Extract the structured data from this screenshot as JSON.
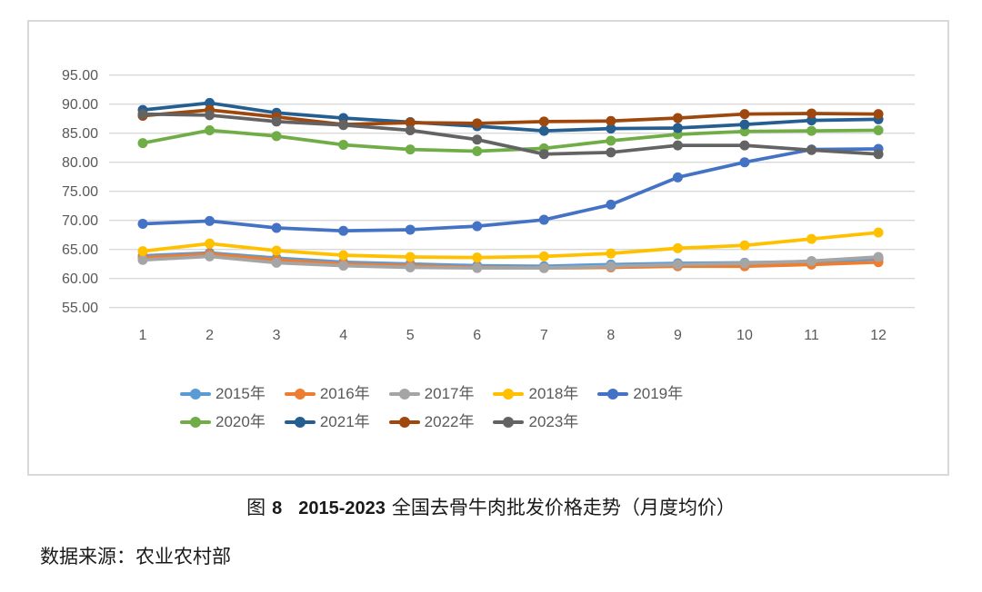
{
  "caption": {
    "fig_label_zh": "图",
    "fig_number": "8",
    "year_range": "2015-2023",
    "title_zh": "全国去骨牛肉批发价格走势（月度均价）"
  },
  "source": {
    "text": "数据来源：农业农村部"
  },
  "chart_data": {
    "type": "line",
    "title": "图8 2015-2023全国去骨牛肉批发价格走势（月度均价）",
    "xlabel": "",
    "ylabel": "",
    "categories": [
      "1",
      "2",
      "3",
      "4",
      "5",
      "6",
      "7",
      "8",
      "9",
      "10",
      "11",
      "12"
    ],
    "ylim": [
      55,
      95
    ],
    "ytick_step": 5,
    "grid": true,
    "legend_position": "bottom",
    "axis_text_color": "#595959",
    "gridline_color": "#d9d9d9",
    "series": [
      {
        "name": "2015年",
        "color": "#5B9BD5",
        "values": [
          63.9,
          64.4,
          63.5,
          62.8,
          62.5,
          62.2,
          62.1,
          62.4,
          62.6,
          62.7,
          62.9,
          63.4
        ]
      },
      {
        "name": "2016年",
        "color": "#ED7D31",
        "values": [
          63.6,
          64.2,
          63.2,
          62.5,
          62.2,
          61.9,
          61.8,
          61.9,
          62.1,
          62.1,
          62.4,
          62.8
        ]
      },
      {
        "name": "2017年",
        "color": "#A5A5A5",
        "values": [
          63.2,
          63.8,
          62.7,
          62.2,
          61.9,
          61.8,
          61.8,
          62.1,
          62.4,
          62.6,
          63.0,
          63.7
        ]
      },
      {
        "name": "2018年",
        "color": "#FFC000",
        "values": [
          64.7,
          66.0,
          64.8,
          64.0,
          63.7,
          63.6,
          63.8,
          64.3,
          65.2,
          65.7,
          66.8,
          67.9
        ]
      },
      {
        "name": "2019年",
        "color": "#4472C4",
        "values": [
          69.4,
          69.9,
          68.7,
          68.2,
          68.4,
          69.0,
          70.1,
          72.7,
          77.4,
          80.0,
          82.2,
          82.3
        ]
      },
      {
        "name": "2020年",
        "color": "#70AD47",
        "values": [
          83.3,
          85.5,
          84.5,
          83.0,
          82.2,
          81.9,
          82.4,
          83.7,
          84.8,
          85.3,
          85.4,
          85.5
        ]
      },
      {
        "name": "2021年",
        "color": "#255E91",
        "values": [
          89.0,
          90.2,
          88.5,
          87.6,
          86.9,
          86.2,
          85.4,
          85.8,
          85.9,
          86.5,
          87.2,
          87.4
        ]
      },
      {
        "name": "2022年",
        "color": "#9E480E",
        "values": [
          88.0,
          89.0,
          87.8,
          86.5,
          86.8,
          86.7,
          87.0,
          87.1,
          87.6,
          88.3,
          88.4,
          88.3
        ]
      },
      {
        "name": "2023年",
        "color": "#636363",
        "values": [
          88.3,
          88.1,
          87.0,
          86.4,
          85.5,
          83.9,
          81.4,
          81.7,
          82.9,
          82.9,
          82.1,
          81.4
        ]
      }
    ]
  }
}
